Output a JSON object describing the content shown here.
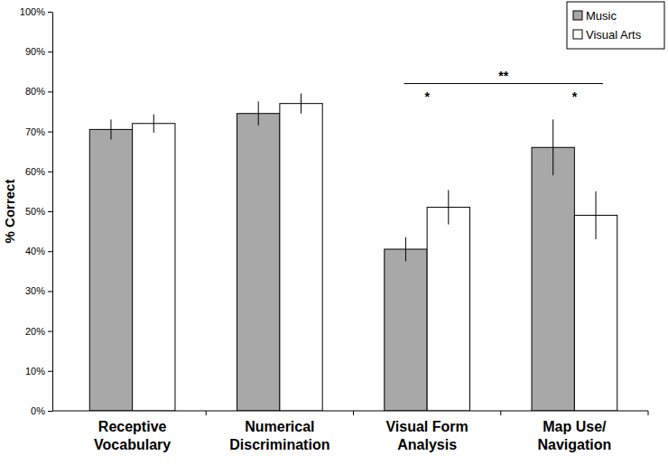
{
  "chart_data": {
    "type": "bar",
    "y_label": "% Correct",
    "categories": [
      "Receptive Vocabulary",
      "Numerical Discrimination",
      "Visual Form Analysis",
      "Map Use/ Navigation"
    ],
    "series": [
      {
        "name": "Music",
        "color": "#a8a8a8",
        "values": [
          70.5,
          74.5,
          40.5,
          66
        ],
        "errors": [
          2.5,
          3,
          3,
          7
        ]
      },
      {
        "name": "Visual Arts",
        "color": "#ffffff",
        "values": [
          72,
          77,
          51,
          49
        ],
        "errors": [
          2.3,
          2.5,
          4.3,
          6
        ]
      }
    ],
    "ylim": [
      0,
      100
    ],
    "yticks": [
      {
        "value": 0,
        "label": "0%"
      },
      {
        "value": 10,
        "label": "10%"
      },
      {
        "value": 20,
        "label": "20%"
      },
      {
        "value": 30,
        "label": "30%"
      },
      {
        "value": 40,
        "label": "40%"
      },
      {
        "value": 50,
        "label": "50%"
      },
      {
        "value": 60,
        "label": "60%"
      },
      {
        "value": 70,
        "label": "70%"
      },
      {
        "value": 80,
        "label": "80%"
      },
      {
        "value": 90,
        "label": "90%"
      },
      {
        "value": 100,
        "label": "100%"
      }
    ],
    "grid": false,
    "legend": "upper right",
    "annotations": [
      {
        "text": "*",
        "category": 2,
        "y": 79.5
      },
      {
        "text": "*",
        "category": 3,
        "y": 79.5
      },
      {
        "text": "**",
        "categories": [
          2,
          3
        ],
        "y": 82
      }
    ]
  }
}
